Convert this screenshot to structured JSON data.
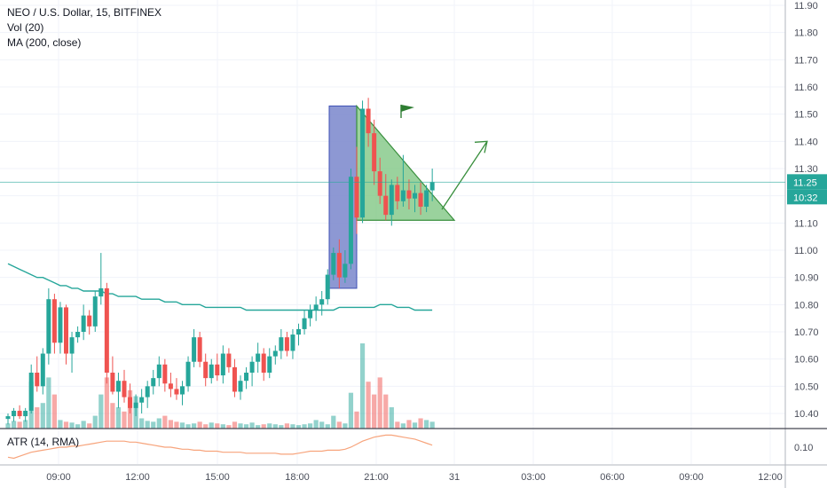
{
  "legend": {
    "symbol_line": "NEO / U.S. Dollar, 15, BITFINEX",
    "volume_line": "Vol (20)",
    "ma_line": "MA (200, close)"
  },
  "atr": {
    "label": "ATR (14, RMA)",
    "tick_label": "0.10",
    "color": "#f7a47c"
  },
  "colors": {
    "up": "#26a69a",
    "down": "#ef5350",
    "ma": "#26a69a",
    "price_line": "#26a69a",
    "pole_fill": "#7986cb",
    "flag_fill": "#81c784",
    "flag_stroke": "#388e3c",
    "arrow": "#388e3c",
    "axis_text": "#4a4e5a"
  },
  "price_tag": {
    "price": "11.25",
    "countdown": "10:32"
  },
  "chart_data": {
    "type": "candlestick",
    "symbol": "NEO / U.S. Dollar",
    "interval": "15",
    "exchange": "BITFINEX",
    "x_tick_labels": [
      "09:00",
      "12:00",
      "15:00",
      "18:00",
      "21:00",
      "31",
      "03:00",
      "06:00",
      "09:00",
      "12:00"
    ],
    "y_tick_labels": [
      "11.90",
      "11.80",
      "11.70",
      "11.60",
      "11.50",
      "11.40",
      "11.30",
      "11.20",
      "11.10",
      "11.00",
      "10.90",
      "10.80",
      "10.70",
      "10.60",
      "10.50",
      "10.40"
    ],
    "y_range": [
      10.36,
      11.92
    ],
    "last_price": 11.25,
    "candles": [
      [
        10.38,
        10.4,
        10.36,
        10.39
      ],
      [
        10.39,
        10.42,
        10.37,
        10.41
      ],
      [
        10.41,
        10.43,
        10.38,
        10.39
      ],
      [
        10.39,
        10.42,
        10.37,
        10.41
      ],
      [
        10.41,
        10.58,
        10.4,
        10.55
      ],
      [
        10.55,
        10.61,
        10.48,
        10.5
      ],
      [
        10.5,
        10.64,
        10.47,
        10.62
      ],
      [
        10.62,
        10.86,
        10.58,
        10.82
      ],
      [
        10.82,
        10.84,
        10.62,
        10.66
      ],
      [
        10.66,
        10.81,
        10.62,
        10.79
      ],
      [
        10.79,
        10.8,
        10.58,
        10.62
      ],
      [
        10.62,
        10.7,
        10.55,
        10.68
      ],
      [
        10.68,
        10.72,
        10.66,
        10.7
      ],
      [
        10.7,
        10.8,
        10.67,
        10.76
      ],
      [
        10.76,
        10.78,
        10.69,
        10.72
      ],
      [
        10.72,
        10.85,
        10.7,
        10.83
      ],
      [
        10.83,
        10.99,
        10.8,
        10.86
      ],
      [
        10.86,
        10.88,
        10.51,
        10.55
      ],
      [
        10.55,
        10.61,
        10.47,
        10.48
      ],
      [
        10.48,
        10.55,
        10.42,
        10.52
      ],
      [
        10.52,
        10.56,
        10.44,
        10.46
      ],
      [
        10.46,
        10.51,
        10.4,
        10.42
      ],
      [
        10.42,
        10.47,
        10.39,
        10.44
      ],
      [
        10.44,
        10.49,
        10.4,
        10.46
      ],
      [
        10.46,
        10.52,
        10.42,
        10.5
      ],
      [
        10.5,
        10.56,
        10.47,
        10.53
      ],
      [
        10.53,
        10.61,
        10.5,
        10.58
      ],
      [
        10.58,
        10.6,
        10.48,
        10.51
      ],
      [
        10.51,
        10.55,
        10.46,
        10.49
      ],
      [
        10.49,
        10.53,
        10.45,
        10.47
      ],
      [
        10.47,
        10.52,
        10.43,
        10.5
      ],
      [
        10.5,
        10.61,
        10.48,
        10.59
      ],
      [
        10.59,
        10.71,
        10.57,
        10.68
      ],
      [
        10.68,
        10.7,
        10.57,
        10.59
      ],
      [
        10.59,
        10.62,
        10.5,
        10.53
      ],
      [
        10.53,
        10.6,
        10.51,
        10.58
      ],
      [
        10.58,
        10.62,
        10.52,
        10.54
      ],
      [
        10.54,
        10.65,
        10.51,
        10.62
      ],
      [
        10.62,
        10.64,
        10.55,
        10.57
      ],
      [
        10.57,
        10.6,
        10.46,
        10.48
      ],
      [
        10.48,
        10.54,
        10.45,
        10.52
      ],
      [
        10.52,
        10.57,
        10.49,
        10.55
      ],
      [
        10.55,
        10.61,
        10.5,
        10.59
      ],
      [
        10.59,
        10.66,
        10.55,
        10.62
      ],
      [
        10.62,
        10.64,
        10.52,
        10.55
      ],
      [
        10.55,
        10.64,
        10.53,
        10.61
      ],
      [
        10.61,
        10.65,
        10.58,
        10.63
      ],
      [
        10.63,
        10.71,
        10.6,
        10.68
      ],
      [
        10.68,
        10.7,
        10.61,
        10.63
      ],
      [
        10.63,
        10.71,
        10.6,
        10.69
      ],
      [
        10.69,
        10.73,
        10.65,
        10.71
      ],
      [
        10.71,
        10.78,
        10.69,
        10.75
      ],
      [
        10.75,
        10.8,
        10.72,
        10.78
      ],
      [
        10.78,
        10.83,
        10.74,
        10.8
      ],
      [
        10.8,
        10.85,
        10.76,
        10.82
      ],
      [
        10.82,
        10.93,
        10.8,
        10.91
      ],
      [
        10.91,
        11.01,
        10.89,
        10.99
      ],
      [
        10.99,
        11.04,
        10.86,
        10.9
      ],
      [
        10.9,
        11.0,
        10.88,
        10.95
      ],
      [
        10.95,
        11.3,
        10.93,
        11.27
      ],
      [
        11.27,
        11.38,
        11.06,
        11.12
      ],
      [
        11.12,
        11.55,
        11.1,
        11.52
      ],
      [
        11.52,
        11.56,
        11.38,
        11.43
      ],
      [
        11.43,
        11.48,
        11.24,
        11.29
      ],
      [
        11.29,
        11.34,
        11.17,
        11.2
      ],
      [
        11.2,
        11.28,
        11.11,
        11.13
      ],
      [
        11.13,
        11.26,
        11.09,
        11.24
      ],
      [
        11.24,
        11.27,
        11.15,
        11.18
      ],
      [
        11.18,
        11.35,
        11.16,
        11.22
      ],
      [
        11.22,
        11.26,
        11.15,
        11.19
      ],
      [
        11.19,
        11.24,
        11.14,
        11.21
      ],
      [
        11.21,
        11.25,
        11.13,
        11.16
      ],
      [
        11.16,
        11.24,
        11.14,
        11.22
      ],
      [
        11.22,
        11.3,
        11.18,
        11.25
      ]
    ],
    "ma_200": [
      10.95,
      10.94,
      10.93,
      10.92,
      10.91,
      10.9,
      10.9,
      10.89,
      10.88,
      10.87,
      10.87,
      10.86,
      10.86,
      10.85,
      10.85,
      10.85,
      10.85,
      10.84,
      10.84,
      10.83,
      10.83,
      10.83,
      10.83,
      10.82,
      10.82,
      10.82,
      10.82,
      10.81,
      10.81,
      10.81,
      10.8,
      10.8,
      10.8,
      10.8,
      10.79,
      10.79,
      10.79,
      10.79,
      10.79,
      10.79,
      10.79,
      10.78,
      10.78,
      10.78,
      10.78,
      10.78,
      10.78,
      10.78,
      10.78,
      10.78,
      10.78,
      10.78,
      10.78,
      10.78,
      10.78,
      10.78,
      10.78,
      10.79,
      10.79,
      10.79,
      10.79,
      10.79,
      10.79,
      10.79,
      10.8,
      10.8,
      10.8,
      10.79,
      10.79,
      10.79,
      10.78,
      10.78,
      10.78,
      10.78
    ],
    "volume_ratio": [
      0.06,
      0.09,
      0.08,
      0.1,
      0.55,
      0.25,
      0.3,
      0.6,
      0.4,
      0.1,
      0.08,
      0.07,
      0.05,
      0.09,
      0.06,
      0.15,
      0.4,
      0.6,
      0.3,
      0.25,
      0.2,
      0.45,
      0.38,
      0.12,
      0.09,
      0.08,
      0.12,
      0.15,
      0.1,
      0.08,
      0.07,
      0.05,
      0.06,
      0.08,
      0.05,
      0.07,
      0.06,
      0.05,
      0.04,
      0.08,
      0.06,
      0.05,
      0.07,
      0.04,
      0.05,
      0.06,
      0.05,
      0.04,
      0.06,
      0.05,
      0.04,
      0.05,
      0.06,
      0.1,
      0.08,
      0.05,
      0.15,
      0.08,
      0.06,
      0.42,
      0.2,
      1.0,
      0.55,
      0.4,
      0.6,
      0.4,
      0.25,
      0.08,
      0.06,
      0.1,
      0.07,
      0.12,
      0.1,
      0.08
    ],
    "atr_values": [
      0.09,
      0.089,
      0.091,
      0.093,
      0.095,
      0.096,
      0.097,
      0.098,
      0.099,
      0.1,
      0.1,
      0.101,
      0.101,
      0.102,
      0.103,
      0.104,
      0.105,
      0.106,
      0.106,
      0.106,
      0.106,
      0.105,
      0.105,
      0.104,
      0.103,
      0.102,
      0.101,
      0.1,
      0.1,
      0.099,
      0.098,
      0.098,
      0.097,
      0.097,
      0.096,
      0.096,
      0.096,
      0.095,
      0.095,
      0.095,
      0.095,
      0.094,
      0.094,
      0.094,
      0.094,
      0.094,
      0.094,
      0.093,
      0.093,
      0.093,
      0.094,
      0.095,
      0.096,
      0.096,
      0.096,
      0.097,
      0.097,
      0.097,
      0.098,
      0.1,
      0.103,
      0.106,
      0.108,
      0.11,
      0.111,
      0.112,
      0.112,
      0.111,
      0.11,
      0.109,
      0.108,
      0.106,
      0.104,
      0.102
    ],
    "drawings": {
      "flagpole": {
        "from_price": 11.53,
        "to_price": 10.86
      },
      "pennant": [
        [
          11.53
        ],
        [
          11.11
        ],
        [
          11.11
        ]
      ],
      "projection_arrow": {
        "from_price": 11.15,
        "to_price": 11.4
      },
      "flag_icon": "flag-icon"
    }
  }
}
